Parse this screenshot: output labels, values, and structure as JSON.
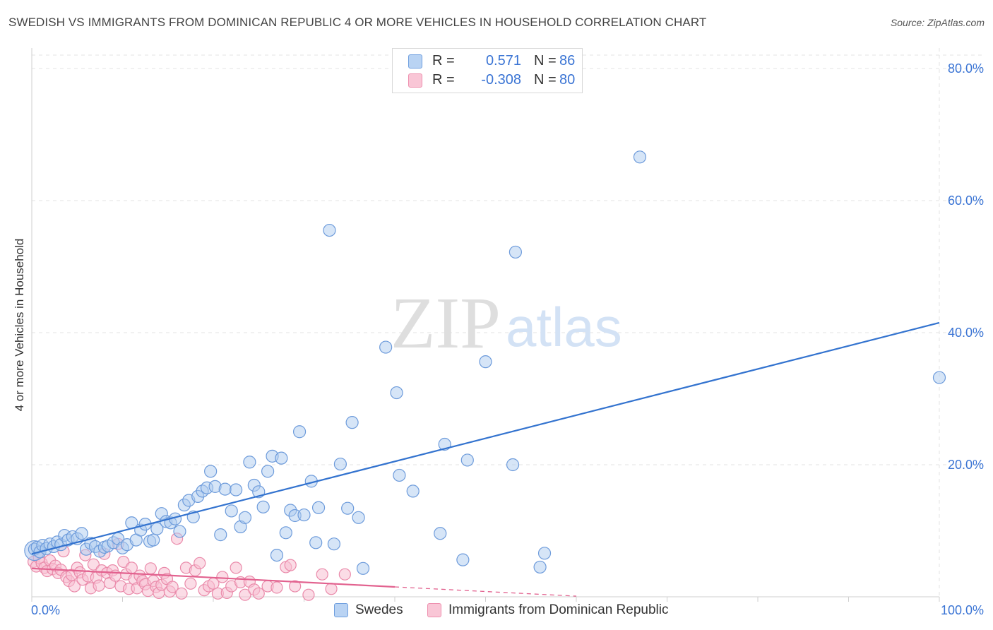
{
  "title": "SWEDISH VS IMMIGRANTS FROM DOMINICAN REPUBLIC 4 OR MORE VEHICLES IN HOUSEHOLD CORRELATION CHART",
  "source": "Source: ZipAtlas.com",
  "watermark": {
    "zip": "ZIP",
    "atlas": "atlas"
  },
  "legend": {
    "r_label": "R =",
    "n_label": "N =",
    "series1": {
      "r": "0.571",
      "n": "86"
    },
    "series2": {
      "r": "-0.308",
      "n": "80"
    }
  },
  "bottom_legend": {
    "series1": "Swedes",
    "series2": "Immigrants from Dominican Republic"
  },
  "colors": {
    "blue_fill": "#aecbf0",
    "blue_stroke": "#6d9bdb",
    "blue_line": "#3373cf",
    "pink_fill": "#f7bfd1",
    "pink_stroke": "#ea8aaa",
    "pink_line": "#e2628f",
    "tick_text": "#3a74d4",
    "grid": "#e3e3e3"
  },
  "chart_data": {
    "type": "scatter",
    "title": "SWEDISH VS IMMIGRANTS FROM DOMINICAN REPUBLIC 4 OR MORE VEHICLES IN HOUSEHOLD CORRELATION CHART",
    "xlabel": "",
    "ylabel": "4 or more Vehicles in Household",
    "xlim": [
      0,
      100
    ],
    "ylim": [
      0,
      82
    ],
    "x_tick_labels": [
      {
        "value": 0,
        "label": "0.0%"
      },
      {
        "value": 100,
        "label": "100.0%"
      }
    ],
    "y_tick_labels": [
      {
        "value": 20,
        "label": "20.0%"
      },
      {
        "value": 40,
        "label": "40.0%"
      },
      {
        "value": 60,
        "label": "60.0%"
      },
      {
        "value": 80,
        "label": "80.0%"
      }
    ],
    "grid": true,
    "series": [
      {
        "name": "Swedes",
        "r": 0.571,
        "n": 86,
        "trend": {
          "x0": 0,
          "y0": 6.5,
          "x1": 100,
          "y1": 41.5
        },
        "points": [
          [
            0.3,
            7.2
          ],
          [
            0.6,
            7.5
          ],
          [
            0.9,
            6.8
          ],
          [
            1.2,
            7.8
          ],
          [
            1.6,
            7.3
          ],
          [
            2.0,
            8.0
          ],
          [
            2.4,
            7.6
          ],
          [
            2.8,
            8.3
          ],
          [
            3.2,
            7.9
          ],
          [
            3.6,
            9.3
          ],
          [
            4.0,
            8.6
          ],
          [
            4.5,
            9.1
          ],
          [
            5.0,
            8.8
          ],
          [
            5.5,
            9.6
          ],
          [
            6.0,
            7.2
          ],
          [
            6.5,
            8.1
          ],
          [
            7.0,
            7.6
          ],
          [
            7.5,
            6.9
          ],
          [
            8.0,
            7.5
          ],
          [
            8.4,
            7.7
          ],
          [
            9.0,
            8.2
          ],
          [
            9.5,
            8.8
          ],
          [
            10.0,
            7.4
          ],
          [
            10.5,
            7.9
          ],
          [
            11.0,
            11.2
          ],
          [
            11.5,
            8.6
          ],
          [
            12.0,
            10.1
          ],
          [
            12.5,
            11.0
          ],
          [
            13.0,
            8.4
          ],
          [
            13.4,
            8.6
          ],
          [
            13.8,
            10.3
          ],
          [
            14.3,
            12.6
          ],
          [
            14.8,
            11.4
          ],
          [
            15.3,
            11.2
          ],
          [
            15.8,
            11.8
          ],
          [
            16.3,
            9.9
          ],
          [
            16.8,
            13.9
          ],
          [
            17.3,
            14.6
          ],
          [
            17.8,
            12.1
          ],
          [
            18.3,
            15.2
          ],
          [
            18.8,
            16.0
          ],
          [
            19.3,
            16.5
          ],
          [
            19.7,
            19.0
          ],
          [
            20.2,
            16.7
          ],
          [
            20.8,
            9.4
          ],
          [
            21.3,
            16.3
          ],
          [
            22.0,
            13.0
          ],
          [
            22.5,
            16.2
          ],
          [
            23.0,
            10.6
          ],
          [
            23.5,
            12.0
          ],
          [
            24.0,
            20.4
          ],
          [
            24.5,
            16.9
          ],
          [
            25.0,
            15.9
          ],
          [
            25.5,
            13.6
          ],
          [
            26.0,
            19.0
          ],
          [
            26.5,
            21.3
          ],
          [
            27.0,
            6.3
          ],
          [
            27.5,
            21.0
          ],
          [
            28.0,
            9.7
          ],
          [
            28.5,
            13.1
          ],
          [
            29.0,
            12.3
          ],
          [
            29.5,
            25.0
          ],
          [
            30.0,
            12.4
          ],
          [
            30.8,
            17.5
          ],
          [
            31.3,
            8.2
          ],
          [
            31.6,
            13.5
          ],
          [
            32.8,
            55.5
          ],
          [
            33.3,
            8.0
          ],
          [
            34.0,
            20.1
          ],
          [
            34.8,
            13.4
          ],
          [
            35.3,
            26.4
          ],
          [
            36.0,
            12.0
          ],
          [
            36.5,
            4.3
          ],
          [
            39.0,
            37.8
          ],
          [
            40.2,
            30.9
          ],
          [
            40.5,
            18.4
          ],
          [
            42.0,
            16.0
          ],
          [
            45.0,
            9.6
          ],
          [
            45.5,
            23.1
          ],
          [
            47.5,
            5.6
          ],
          [
            48.0,
            20.7
          ],
          [
            50.0,
            35.6
          ],
          [
            53.0,
            20.0
          ],
          [
            53.3,
            52.2
          ],
          [
            56.0,
            4.5
          ],
          [
            56.5,
            6.6
          ],
          [
            67.0,
            66.6
          ],
          [
            100.0,
            33.2
          ]
        ]
      },
      {
        "name": "Immigrants from Dominican Republic",
        "r": -0.308,
        "n": 80,
        "trend": {
          "x0": 0,
          "y0": 4.3,
          "x1": 40,
          "y1": 1.5,
          "dashed_to": {
            "x": 60,
            "y": 0.1
          }
        },
        "points": [
          [
            0.2,
            5.3
          ],
          [
            0.5,
            4.6
          ],
          [
            0.8,
            5.9
          ],
          [
            1.1,
            5.1
          ],
          [
            1.4,
            4.4
          ],
          [
            1.7,
            3.9
          ],
          [
            2.0,
            5.5
          ],
          [
            2.3,
            4.2
          ],
          [
            2.6,
            4.7
          ],
          [
            2.9,
            3.6
          ],
          [
            3.2,
            4.1
          ],
          [
            3.5,
            6.9
          ],
          [
            3.8,
            3.0
          ],
          [
            4.1,
            2.4
          ],
          [
            4.4,
            3.3
          ],
          [
            4.7,
            1.6
          ],
          [
            5.0,
            4.4
          ],
          [
            5.3,
            3.7
          ],
          [
            5.6,
            2.6
          ],
          [
            5.9,
            6.3
          ],
          [
            6.2,
            3.1
          ],
          [
            6.5,
            1.3
          ],
          [
            6.8,
            4.9
          ],
          [
            7.1,
            2.9
          ],
          [
            7.4,
            1.7
          ],
          [
            7.7,
            4.0
          ],
          [
            8.0,
            6.5
          ],
          [
            8.3,
            3.6
          ],
          [
            8.6,
            2.1
          ],
          [
            8.9,
            4.0
          ],
          [
            9.2,
            3.2
          ],
          [
            9.5,
            8.0
          ],
          [
            9.8,
            1.6
          ],
          [
            10.1,
            5.3
          ],
          [
            10.4,
            3.4
          ],
          [
            10.7,
            1.2
          ],
          [
            11.0,
            4.4
          ],
          [
            11.3,
            2.7
          ],
          [
            11.6,
            1.3
          ],
          [
            11.9,
            3.2
          ],
          [
            12.2,
            2.4
          ],
          [
            12.5,
            1.9
          ],
          [
            12.8,
            0.9
          ],
          [
            13.1,
            4.3
          ],
          [
            13.4,
            2.4
          ],
          [
            13.7,
            1.5
          ],
          [
            14.0,
            0.6
          ],
          [
            14.3,
            1.8
          ],
          [
            14.6,
            3.6
          ],
          [
            14.9,
            2.7
          ],
          [
            15.2,
            0.8
          ],
          [
            15.5,
            1.5
          ],
          [
            16.0,
            8.8
          ],
          [
            16.5,
            0.5
          ],
          [
            17.0,
            4.4
          ],
          [
            17.5,
            2.0
          ],
          [
            18.0,
            4.0
          ],
          [
            18.5,
            5.1
          ],
          [
            19.0,
            1.0
          ],
          [
            19.5,
            1.6
          ],
          [
            20.0,
            2.0
          ],
          [
            20.5,
            0.5
          ],
          [
            21.0,
            3.0
          ],
          [
            21.5,
            0.6
          ],
          [
            22.0,
            1.6
          ],
          [
            22.5,
            4.4
          ],
          [
            23.0,
            2.2
          ],
          [
            23.5,
            0.3
          ],
          [
            24.0,
            2.3
          ],
          [
            24.5,
            1.1
          ],
          [
            25.0,
            0.5
          ],
          [
            26.0,
            1.6
          ],
          [
            27.0,
            1.4
          ],
          [
            28.0,
            4.5
          ],
          [
            28.5,
            4.8
          ],
          [
            29.0,
            1.6
          ],
          [
            30.5,
            0.3
          ],
          [
            32.0,
            3.4
          ],
          [
            33.0,
            1.2
          ],
          [
            34.5,
            3.4
          ]
        ]
      }
    ]
  }
}
